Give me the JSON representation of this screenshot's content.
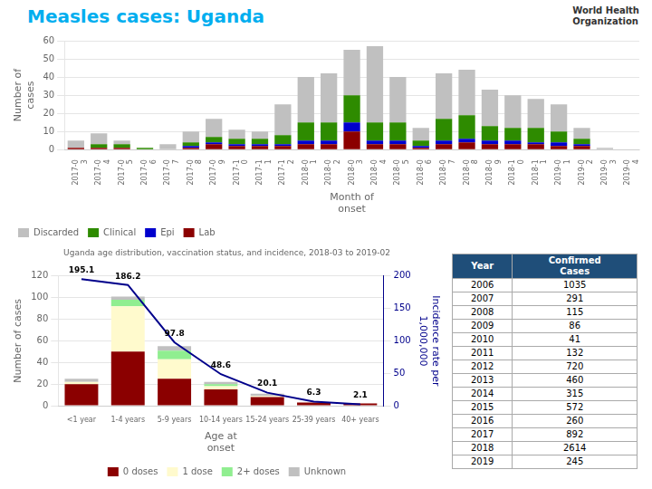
{
  "title": "Measles cases: Uganda",
  "color": "#00AEEF",
  "annotations": [
    "World Health",
    "Organization"
  ],
  "chart_data": [
    {
      "type": "bar",
      "stacked": true,
      "categories": [
        "2017-0\n3",
        "2017-0\n4",
        "2017-0\n5",
        "2017-0\n6",
        "2017-0\n7",
        "2017-0\n8",
        "2017-0\n9",
        "2017-1\n0",
        "2017-1\n1",
        "2017-1\n2",
        "2018-0\n1",
        "2018-0\n2",
        "2018-0\n3",
        "2018-0\n4",
        "2018-0\n5",
        "2018-0\n6",
        "2018-0\n7",
        "2018-0\n8",
        "2018-0\n9",
        "2018-1\n0",
        "2018-1\n1",
        "2019-0\n1",
        "2019-0\n2",
        "2019-0\n3",
        "2019-0\n4"
      ],
      "xlabel": "Month of\nonset",
      "ylabel": "Number of\ncases",
      "ylim": [
        0,
        60
      ],
      "yticks": [
        0,
        10,
        20,
        30,
        40,
        50,
        60
      ],
      "grid": "y",
      "legend": "bottom left",
      "series": [
        {
          "name": "Lab",
          "color": "#8B0000",
          "values": [
            1,
            1,
            1,
            0,
            0,
            1,
            3,
            2,
            2,
            2,
            3,
            3,
            10,
            3,
            3,
            1,
            3,
            4,
            3,
            3,
            3,
            2,
            2,
            0,
            0
          ]
        },
        {
          "name": "Epi",
          "color": "#0000CD",
          "values": [
            0,
            0,
            0,
            0,
            0,
            1,
            1,
            1,
            1,
            1,
            2,
            2,
            5,
            2,
            2,
            1,
            2,
            2,
            2,
            2,
            1,
            2,
            1,
            0,
            0
          ]
        },
        {
          "name": "Clinical",
          "color": "#2E8B00",
          "values": [
            0,
            2,
            2,
            1,
            0,
            2,
            3,
            3,
            3,
            5,
            10,
            10,
            15,
            10,
            10,
            3,
            12,
            13,
            8,
            7,
            8,
            6,
            3,
            0,
            0
          ]
        },
        {
          "name": "Discarded",
          "color": "#C0C0C0",
          "values": [
            4,
            6,
            2,
            0,
            3,
            6,
            10,
            5,
            4,
            17,
            25,
            27,
            25,
            42,
            25,
            7,
            25,
            25,
            20,
            18,
            16,
            15,
            6,
            1,
            0
          ]
        }
      ]
    },
    {
      "type": "bar",
      "stacked": true,
      "title": "Uganda age distribution, vaccination status, and incidence, 2018-03 to 2019-02",
      "categories": [
        "<1 year",
        "1-4 years",
        "5-9 years",
        "10-14 years",
        "15-24 years",
        "25-39 years",
        "40+ years"
      ],
      "xlabel": "Age at\nonset",
      "ylabel": "Number of cases",
      "y2label": "Incidence rate per\n1,000,000",
      "ylim": [
        0,
        120
      ],
      "yticks": [
        0,
        20,
        40,
        60,
        80,
        100,
        120
      ],
      "y2lim": [
        0,
        200
      ],
      "y2ticks": [
        0,
        50,
        100,
        150,
        200
      ],
      "grid": "y",
      "legend": "bottom",
      "series": [
        {
          "name": "0 doses",
          "color": "#8B0000",
          "values": [
            20,
            50,
            25,
            15,
            8,
            3,
            2
          ]
        },
        {
          "name": "1 dose",
          "color": "#FFFACD",
          "values": [
            2,
            42,
            18,
            3,
            1,
            0,
            0
          ]
        },
        {
          "name": "2+ doses",
          "color": "#90EE90",
          "values": [
            0,
            6,
            8,
            2,
            0,
            0,
            0
          ]
        },
        {
          "name": "Unknown",
          "color": "#C0C0C0",
          "values": [
            3,
            3,
            4,
            2,
            2,
            0,
            0
          ]
        },
        {
          "type": "line",
          "axis": "y2",
          "color": "#00008B",
          "data_labels": true,
          "values": [
            195.1,
            186.2,
            97.8,
            48.6,
            20.1,
            6.3,
            2.1
          ]
        }
      ]
    },
    {
      "type": "table",
      "columns": [
        "Year",
        "Confirmed\nCases"
      ],
      "categories": [
        "2006",
        "2007",
        "2008",
        "2009",
        "2010",
        "2011",
        "2012",
        "2013",
        "2014",
        "2015",
        "2016",
        "2017",
        "2018",
        "2019"
      ],
      "values": [
        1035,
        291,
        115,
        86,
        41,
        132,
        720,
        460,
        315,
        572,
        260,
        892,
        2614,
        245
      ],
      "color": "#1F4E79"
    }
  ]
}
